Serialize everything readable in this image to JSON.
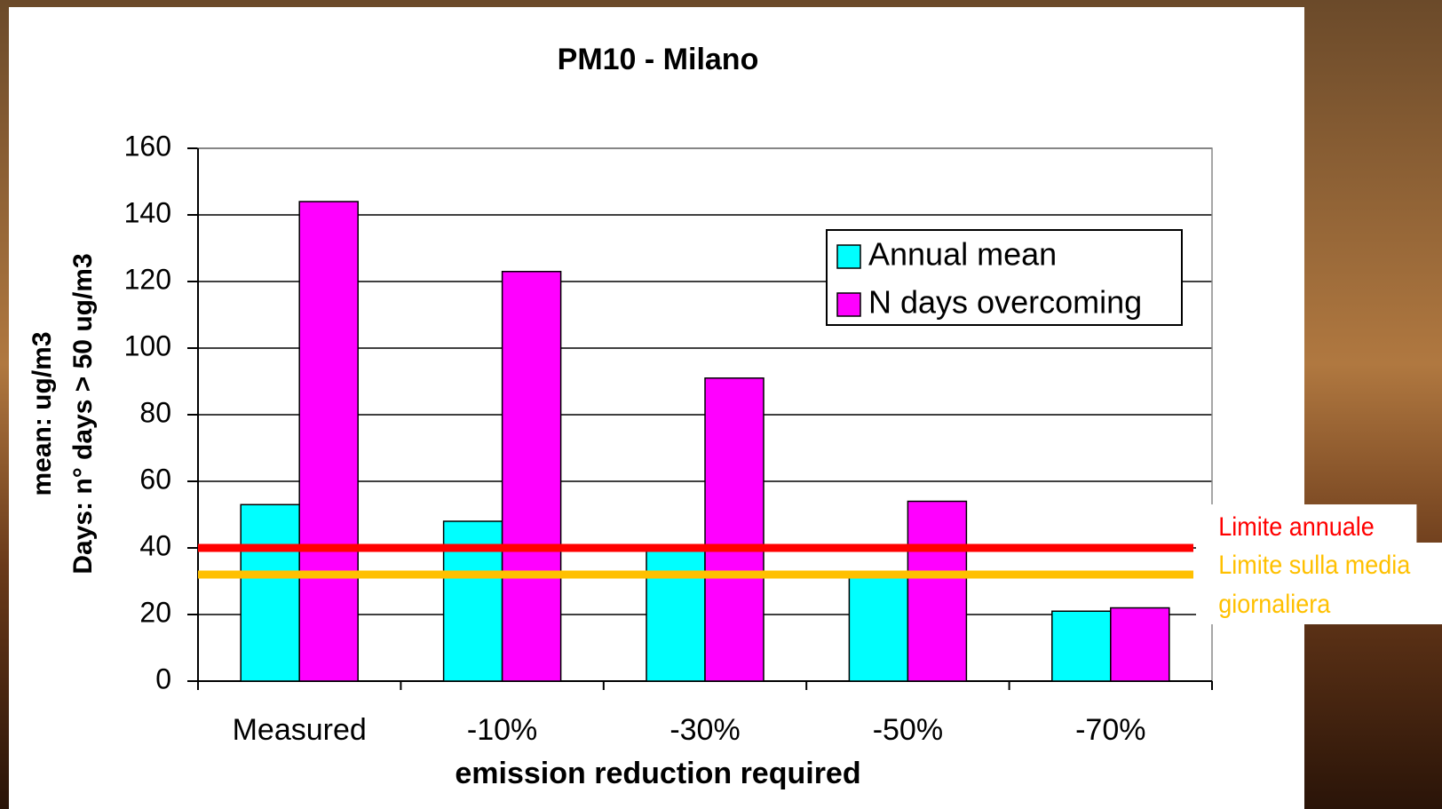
{
  "chart_data": {
    "type": "bar",
    "title": "PM10  - Milano",
    "x_label": "emission reduction required",
    "y_label": [
      "mean: ug/m3",
      "Days: n° days > 50 ug/m3"
    ],
    "categories": [
      "Measured",
      "-10%",
      "-30%",
      "-50%",
      "-70%"
    ],
    "series": [
      {
        "name": "Annual mean",
        "color": "#00ffff",
        "values": [
          53,
          48,
          40,
          31,
          21
        ]
      },
      {
        "name": "N days overcoming",
        "color": "#ff00ff",
        "values": [
          144,
          123,
          91,
          54,
          22
        ]
      }
    ],
    "reference_lines": [
      {
        "label": "Limite annuale",
        "value": 40,
        "color": "#ff0000"
      },
      {
        "label": "Limite sulla media giornaliera",
        "value": 32,
        "color": "#ffc000"
      }
    ],
    "ylim": [
      0,
      160
    ],
    "yticks": [
      0,
      20,
      40,
      60,
      80,
      100,
      120,
      140,
      160
    ],
    "grid": true
  }
}
